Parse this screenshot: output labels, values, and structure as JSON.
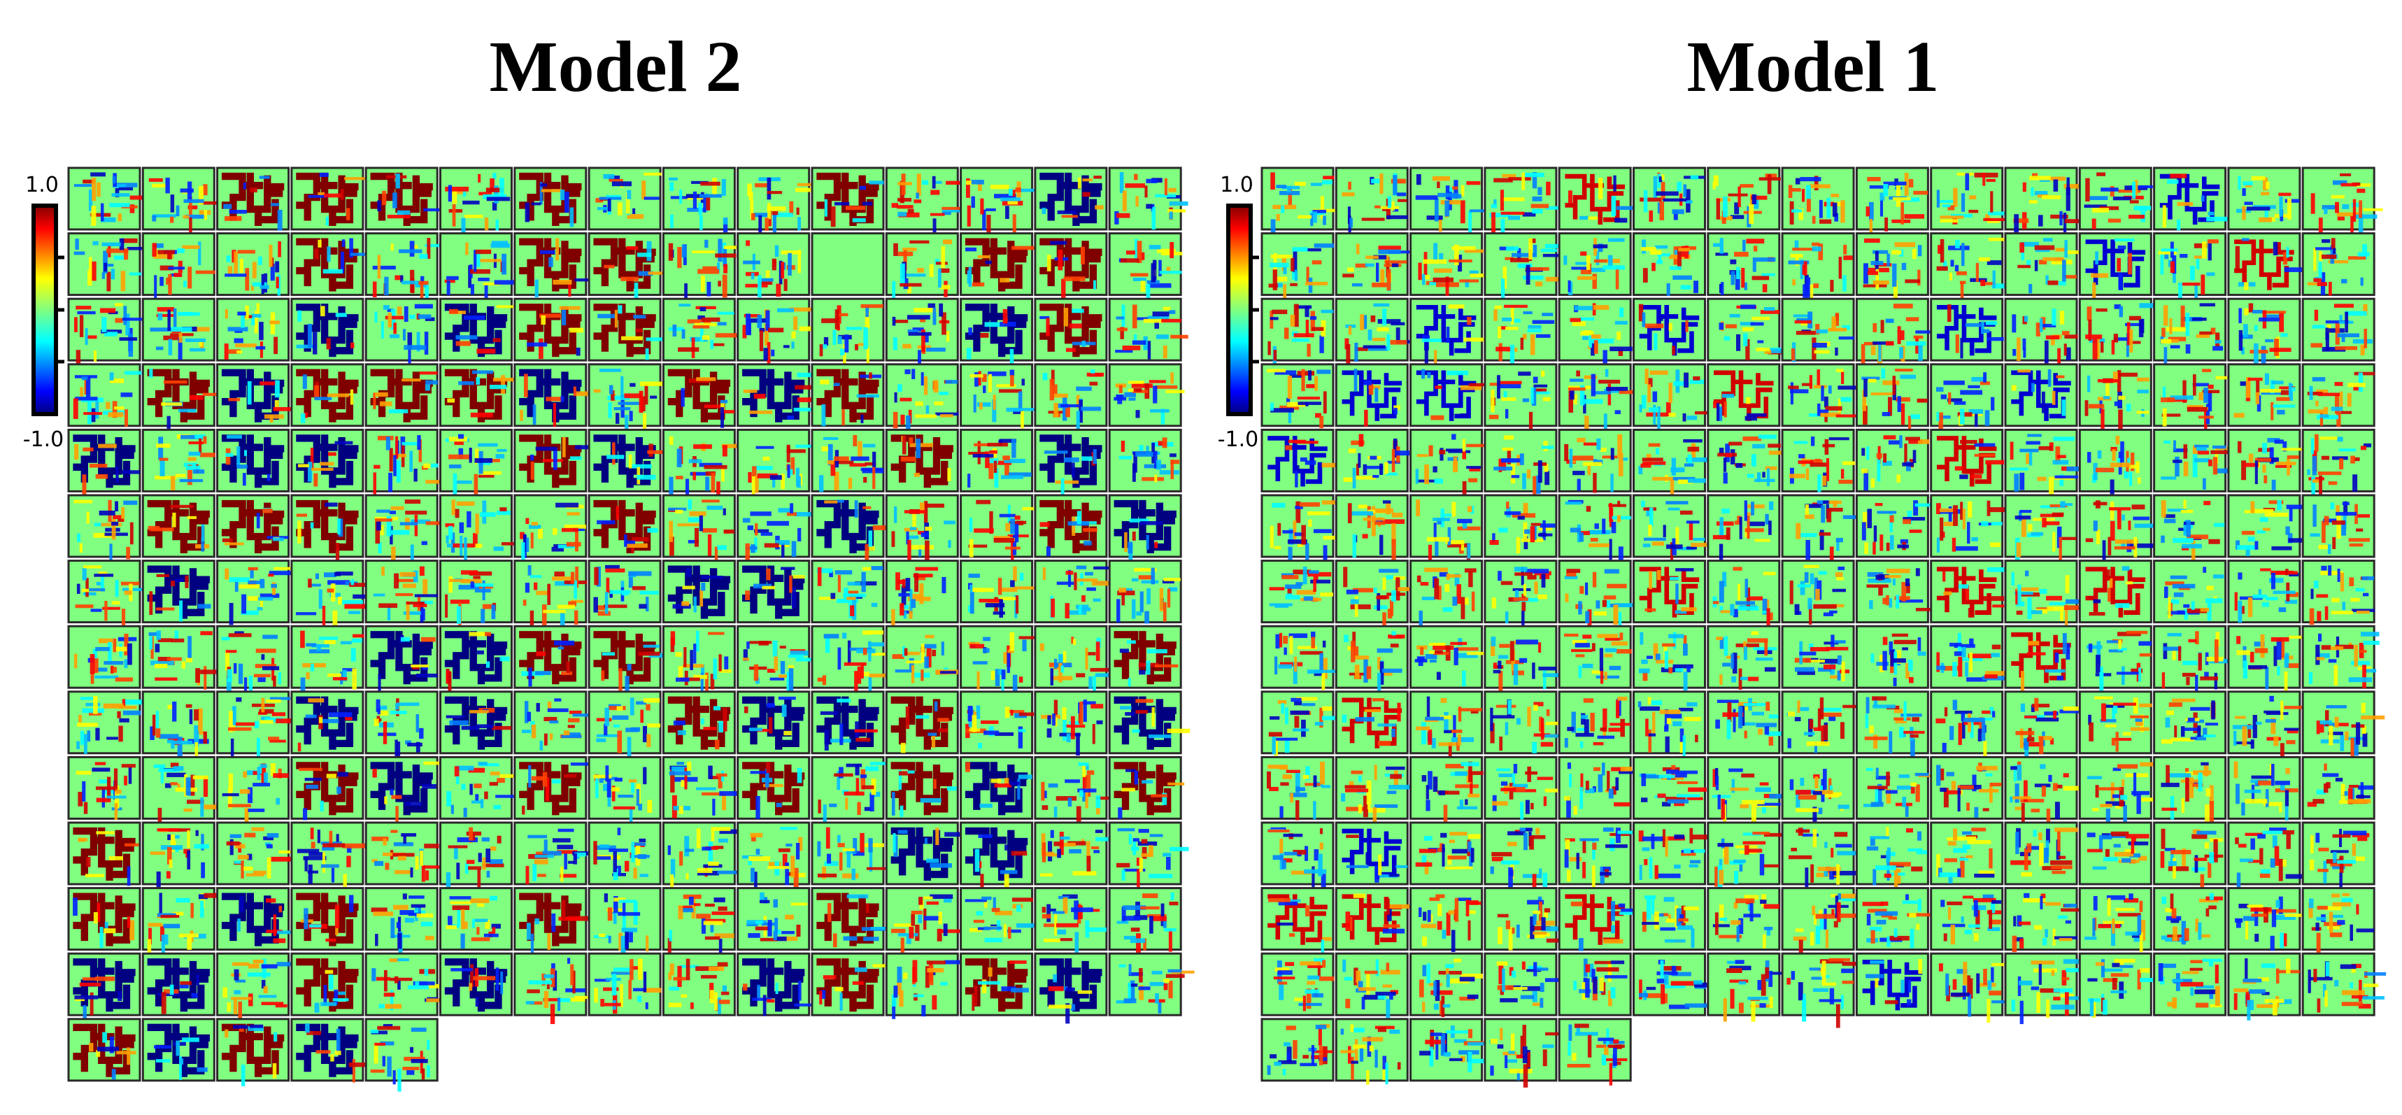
{
  "panels": [
    {
      "id": "model-2",
      "title": "Model 2",
      "colorbar": {
        "max_label": "1.0",
        "min_label": "-1.0",
        "colormap": "jet"
      },
      "grid": {
        "rows": 14,
        "cols": 15,
        "tiles": 200
      }
    },
    {
      "id": "model-1",
      "title": "Model 1",
      "colorbar": {
        "max_label": "1.0",
        "min_label": "-1.0",
        "colormap": "jet"
      },
      "grid": {
        "rows": 14,
        "cols": 15,
        "tiles": 200
      }
    }
  ],
  "colors": {
    "background_field": "#80ff80",
    "tile_border": "#2a2a2a",
    "strong_positive": "#800000",
    "strong_negative": "#000080"
  }
}
